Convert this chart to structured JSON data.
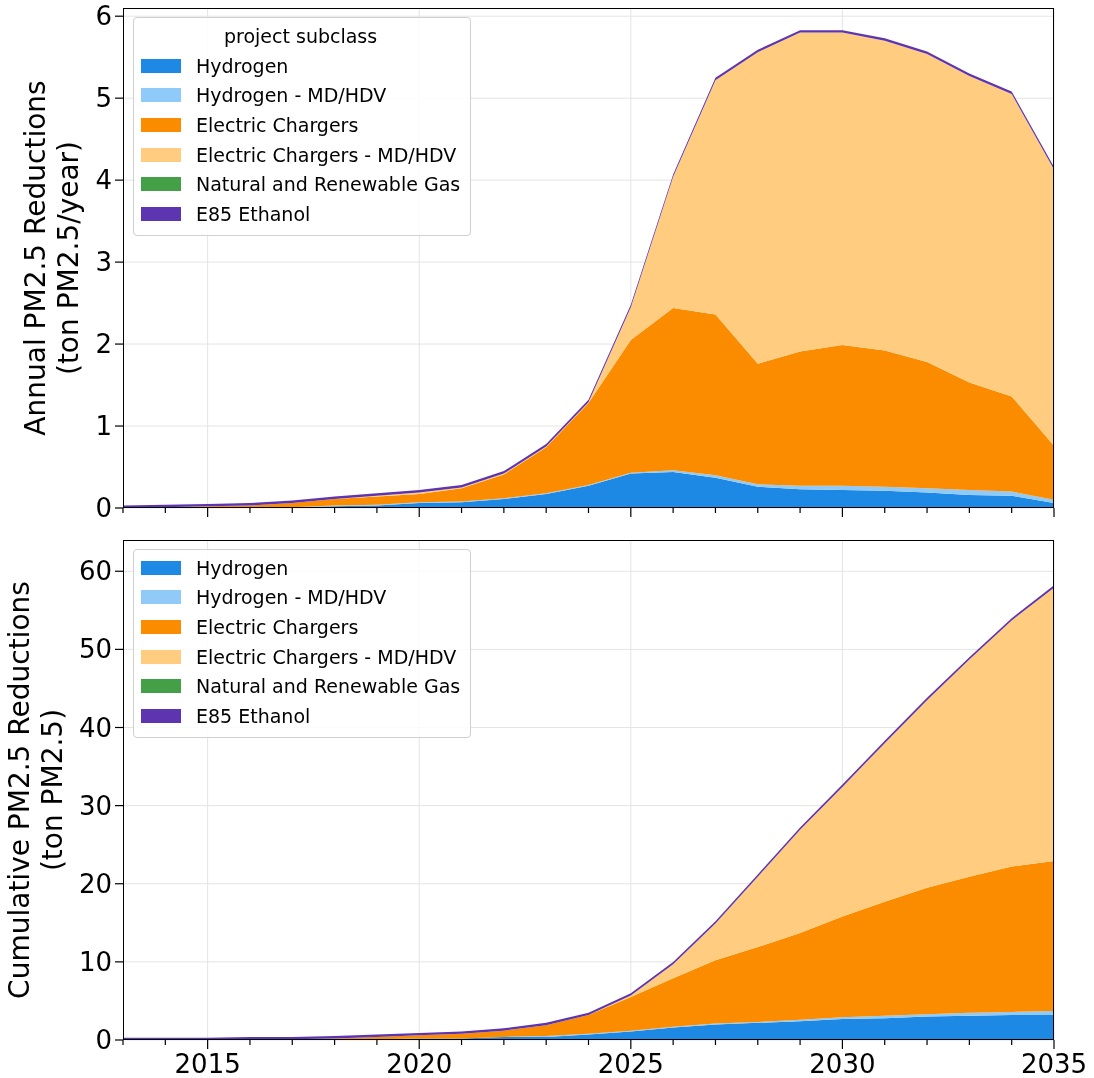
{
  "chart_data": [
    {
      "type": "area",
      "stacked": true,
      "ylabel": "Annual PM2.5 Reductions\n(ton PM2.5/year)",
      "legend_title": "project subclass",
      "legend": "top left",
      "grid": true,
      "tick_labels": "y",
      "x": [
        2013,
        2014,
        2015,
        2016,
        2017,
        2018,
        2019,
        2020,
        2021,
        2022,
        2023,
        2024,
        2025,
        2026,
        2027,
        2028,
        2029,
        2030,
        2031,
        2032,
        2033,
        2034,
        2035
      ],
      "xlim": [
        2013,
        2035
      ],
      "xticks": [
        {
          "value": 2013,
          "label": null
        },
        {
          "value": 2014,
          "label": null
        },
        2015,
        {
          "value": 2016,
          "label": null
        },
        {
          "value": 2017,
          "label": null
        },
        {
          "value": 2018,
          "label": null
        },
        {
          "value": 2019,
          "label": null
        },
        2020,
        {
          "value": 2021,
          "label": null
        },
        {
          "value": 2022,
          "label": null
        },
        {
          "value": 2023,
          "label": null
        },
        {
          "value": 2024,
          "label": null
        },
        2025,
        {
          "value": 2026,
          "label": null
        },
        {
          "value": 2027,
          "label": null
        },
        {
          "value": 2028,
          "label": null
        },
        {
          "value": 2029,
          "label": null
        },
        2030,
        {
          "value": 2031,
          "label": null
        },
        {
          "value": 2032,
          "label": null
        },
        {
          "value": 2033,
          "label": null
        },
        {
          "value": 2034,
          "label": null
        },
        2035
      ],
      "ylim": [
        0,
        6.1
      ],
      "yticks": [
        0,
        1,
        2,
        3,
        4,
        5,
        6
      ],
      "series": [
        {
          "name": "Hydrogen",
          "color": "#1e88e5",
          "values": [
            0,
            0,
            0,
            0,
            0.01,
            0.02,
            0.03,
            0.06,
            0.07,
            0.11,
            0.17,
            0.27,
            0.42,
            0.44,
            0.37,
            0.26,
            0.23,
            0.22,
            0.21,
            0.19,
            0.16,
            0.15,
            0.06
          ]
        },
        {
          "name": "Hydrogen - MD/HDV",
          "color": "#90caf9",
          "values": [
            0,
            0,
            0,
            0,
            0,
            0.01,
            0.01,
            0.01,
            0.01,
            0.01,
            0.01,
            0.01,
            0.01,
            0.02,
            0.03,
            0.03,
            0.04,
            0.05,
            0.05,
            0.05,
            0.06,
            0.05,
            0.04
          ]
        },
        {
          "name": "Electric Chargers",
          "color": "#fb8c00",
          "values": [
            0,
            0.01,
            0.02,
            0.03,
            0.05,
            0.08,
            0.1,
            0.1,
            0.16,
            0.29,
            0.56,
            1.0,
            1.62,
            1.98,
            1.96,
            1.47,
            1.64,
            1.72,
            1.66,
            1.54,
            1.31,
            1.16,
            0.66
          ]
        },
        {
          "name": "Electric Chargers - MD/HDV",
          "color": "#ffcc80",
          "values": [
            0,
            0,
            0,
            0,
            0,
            0,
            0.01,
            0.02,
            0.01,
            0.01,
            0.01,
            0.01,
            0.4,
            1.6,
            2.86,
            3.8,
            3.89,
            3.81,
            3.78,
            3.76,
            3.74,
            3.69,
            3.37
          ]
        },
        {
          "name": "Natural and Renewable Gas",
          "color": "#43a047",
          "values": [
            null,
            null,
            null,
            null,
            null,
            null,
            null,
            null,
            null,
            null,
            null,
            null,
            null,
            null,
            null,
            null,
            null,
            null,
            null,
            null,
            null,
            null,
            null
          ]
        },
        {
          "name": "E85 Ethanol",
          "color": "#5e35b1",
          "values": [
            0.03,
            0.03,
            0.03,
            0.03,
            0.03,
            0.03,
            0.03,
            0.03,
            0.03,
            0.03,
            0.03,
            0.03,
            0.03,
            0.03,
            0.03,
            0.03,
            0.03,
            0.03,
            0.03,
            0.03,
            0.03,
            0.03,
            0.03
          ]
        }
      ]
    },
    {
      "type": "area",
      "stacked": true,
      "ylabel": "Cumulative PM2.5 Reductions\n(ton PM2.5)",
      "legend": "top left",
      "grid": true,
      "x": [
        2013,
        2014,
        2015,
        2016,
        2017,
        2018,
        2019,
        2020,
        2021,
        2022,
        2023,
        2024,
        2025,
        2026,
        2027,
        2028,
        2029,
        2030,
        2031,
        2032,
        2033,
        2034,
        2035
      ],
      "xlim": [
        2013,
        2035
      ],
      "xticks": [
        {
          "value": 2013,
          "label": null
        },
        {
          "value": 2014,
          "label": null
        },
        2015,
        {
          "value": 2016,
          "label": null
        },
        {
          "value": 2017,
          "label": null
        },
        {
          "value": 2018,
          "label": null
        },
        {
          "value": 2019,
          "label": null
        },
        2020,
        {
          "value": 2021,
          "label": null
        },
        {
          "value": 2022,
          "label": null
        },
        {
          "value": 2023,
          "label": null
        },
        {
          "value": 2024,
          "label": null
        },
        2025,
        {
          "value": 2026,
          "label": null
        },
        {
          "value": 2027,
          "label": null
        },
        {
          "value": 2028,
          "label": null
        },
        {
          "value": 2029,
          "label": null
        },
        2030,
        {
          "value": 2031,
          "label": null
        },
        {
          "value": 2032,
          "label": null
        },
        {
          "value": 2033,
          "label": null
        },
        {
          "value": 2034,
          "label": null
        },
        2035
      ],
      "ylim": [
        0,
        64
      ],
      "yticks": [
        0,
        10,
        20,
        30,
        40,
        50,
        60
      ],
      "series": [
        {
          "name": "Hydrogen",
          "color": "#1e88e5",
          "values": [
            0,
            0,
            0,
            0,
            0,
            0.1,
            0.1,
            0.2,
            0.2,
            0.4,
            0.4,
            0.7,
            1.1,
            1.6,
            2.0,
            2.2,
            2.4,
            2.7,
            2.8,
            3.0,
            3.1,
            3.2,
            3.2
          ]
        },
        {
          "name": "Hydrogen - MD/HDV",
          "color": "#90caf9",
          "values": [
            0,
            0,
            0,
            0,
            0,
            0,
            0,
            0,
            0,
            0,
            0.1,
            0.1,
            0.1,
            0.1,
            0.1,
            0.1,
            0.2,
            0.2,
            0.3,
            0.3,
            0.4,
            0.4,
            0.5
          ]
        },
        {
          "name": "Electric Chargers",
          "color": "#fb8c00",
          "values": [
            0,
            0,
            0,
            0.1,
            0.1,
            0.1,
            0.3,
            0.4,
            0.6,
            0.8,
            1.4,
            2.4,
            4.3,
            6.2,
            8.1,
            9.6,
            11.1,
            12.9,
            14.6,
            16.2,
            17.4,
            18.6,
            19.2
          ]
        },
        {
          "name": "Electric Chargers - MD/HDV",
          "color": "#ffcc80",
          "values": [
            0,
            0,
            0,
            0,
            0,
            0,
            0,
            0,
            0,
            0,
            0,
            0,
            0.2,
            1.8,
            4.7,
            9.0,
            13.2,
            16.6,
            20.3,
            24.0,
            27.8,
            31.5,
            35.0
          ]
        },
        {
          "name": "Natural and Renewable Gas",
          "color": "#43a047",
          "values": [
            null,
            null,
            null,
            null,
            null,
            null,
            null,
            null,
            null,
            null,
            null,
            null,
            null,
            null,
            null,
            null,
            null,
            null,
            null,
            null,
            null,
            null,
            null
          ]
        },
        {
          "name": "E85 Ethanol",
          "color": "#5e35b1",
          "values": [
            0.3,
            0.3,
            0.3,
            0.3,
            0.3,
            0.3,
            0.3,
            0.3,
            0.3,
            0.3,
            0.3,
            0.3,
            0.3,
            0.3,
            0.3,
            0.3,
            0.3,
            0.3,
            0.3,
            0.3,
            0.3,
            0.3,
            0.3
          ]
        }
      ]
    }
  ]
}
